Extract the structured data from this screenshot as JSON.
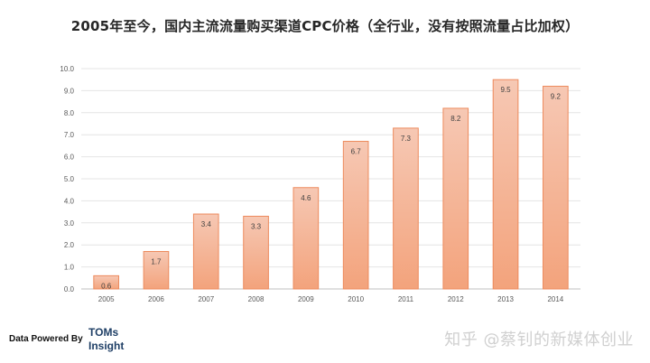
{
  "title": "2005年至今，国内主流流量购买渠道CPC价格（全行业，没有按照流量占比加权）",
  "chart_data": {
    "type": "bar",
    "categories": [
      "2005",
      "2006",
      "2007",
      "2008",
      "2009",
      "2010",
      "2011",
      "2012",
      "2013",
      "2014"
    ],
    "values": [
      0.6,
      1.7,
      3.4,
      3.3,
      4.6,
      6.7,
      7.3,
      8.2,
      9.5,
      9.2
    ],
    "ylim": [
      0,
      10
    ],
    "yticks": [
      "0.0",
      "1.0",
      "2.0",
      "3.0",
      "4.0",
      "5.0",
      "6.0",
      "7.0",
      "8.0",
      "9.0",
      "10.0"
    ],
    "grid": true,
    "colors": {
      "bar_top": "#f6c8b4",
      "bar_bottom": "#f3a37c",
      "bar_border": "#ed8a5c",
      "grid": "#e4e4e4"
    }
  },
  "footer": {
    "powered_by": "Data Powered By",
    "brand_line1": "TOMs",
    "brand_line2": "Insight"
  },
  "watermark": "知乎 @蔡钊的新媒体创业"
}
